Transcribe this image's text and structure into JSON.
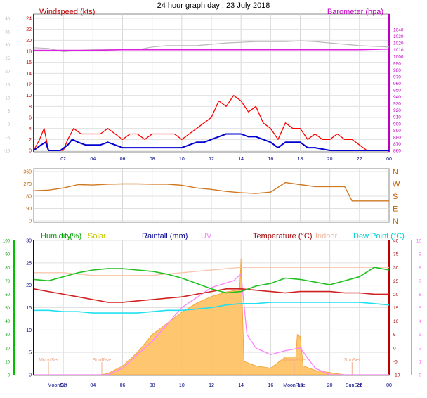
{
  "title": "24 hour graph day : 23 July 2018",
  "wind": {
    "left_label": "Windspeed (kts)",
    "right_label": "Barometer (hpa)",
    "left_ticks": [
      "24",
      "22",
      "20",
      "18",
      "16",
      "14",
      "12",
      "10",
      "8",
      "6",
      "4",
      "2",
      "0"
    ],
    "outer_left_ticks": [
      "40",
      "35",
      "30",
      "25",
      "20",
      "15",
      "10",
      "5",
      "0",
      "-5",
      "-10"
    ],
    "right_ticks": [
      "1040",
      "1030",
      "1020",
      "1010",
      "1000",
      "990",
      "980",
      "970",
      "960",
      "950",
      "940",
      "930",
      "920",
      "910",
      "900",
      "890",
      "880",
      "870",
      "860"
    ],
    "x_ticks": [
      "02",
      "04",
      "06",
      "08",
      "10",
      "12",
      "14",
      "16",
      "18",
      "20",
      "22",
      "00"
    ],
    "gust": [
      [
        0,
        0
      ],
      [
        0.4,
        2
      ],
      [
        0.7,
        4
      ],
      [
        1,
        0
      ],
      [
        1.5,
        0
      ],
      [
        2,
        0
      ],
      [
        2.3,
        2
      ],
      [
        2.7,
        4
      ],
      [
        3.2,
        3
      ],
      [
        3.5,
        3
      ],
      [
        4,
        3
      ],
      [
        4.5,
        3
      ],
      [
        5,
        4
      ],
      [
        5.5,
        3
      ],
      [
        6,
        2
      ],
      [
        6.5,
        3
      ],
      [
        7,
        3
      ],
      [
        7.5,
        2
      ],
      [
        8,
        3
      ],
      [
        8.5,
        3
      ],
      [
        9,
        3
      ],
      [
        9.5,
        3
      ],
      [
        10,
        2
      ],
      [
        10.5,
        3
      ],
      [
        11,
        4
      ],
      [
        11.5,
        5
      ],
      [
        12,
        6
      ],
      [
        12.5,
        9
      ],
      [
        13,
        8
      ],
      [
        13.5,
        10
      ],
      [
        14,
        9
      ],
      [
        14.5,
        7
      ],
      [
        15,
        8
      ],
      [
        15.5,
        5
      ],
      [
        16,
        4
      ],
      [
        16.5,
        2
      ],
      [
        17,
        5
      ],
      [
        17.5,
        4
      ],
      [
        18,
        4
      ],
      [
        18.5,
        2
      ],
      [
        19,
        3
      ],
      [
        19.5,
        2
      ],
      [
        20,
        2
      ],
      [
        20.5,
        3
      ],
      [
        21,
        2
      ],
      [
        21.5,
        2
      ],
      [
        22,
        1
      ],
      [
        22.5,
        0
      ],
      [
        23,
        0
      ],
      [
        24,
        0
      ]
    ],
    "avg": [
      [
        0,
        0
      ],
      [
        0.5,
        1
      ],
      [
        0.8,
        1.5
      ],
      [
        1,
        0
      ],
      [
        1.8,
        0
      ],
      [
        2.3,
        1
      ],
      [
        2.6,
        2
      ],
      [
        3,
        1.5
      ],
      [
        3.5,
        1
      ],
      [
        4,
        1
      ],
      [
        4.5,
        1
      ],
      [
        5,
        1.5
      ],
      [
        5.5,
        1
      ],
      [
        6,
        0.5
      ],
      [
        7,
        0.5
      ],
      [
        7.5,
        0.5
      ],
      [
        8,
        0.5
      ],
      [
        9,
        0.5
      ],
      [
        10,
        0.5
      ],
      [
        10.5,
        1
      ],
      [
        11,
        1.5
      ],
      [
        11.5,
        1.5
      ],
      [
        12,
        2
      ],
      [
        12.5,
        2.5
      ],
      [
        13,
        3
      ],
      [
        13.5,
        3
      ],
      [
        14,
        3
      ],
      [
        14.5,
        2.5
      ],
      [
        15,
        2.5
      ],
      [
        15.5,
        2
      ],
      [
        16,
        1.5
      ],
      [
        16.5,
        0.5
      ],
      [
        17,
        1.5
      ],
      [
        17.5,
        1.5
      ],
      [
        18,
        1.5
      ],
      [
        18.5,
        0.5
      ],
      [
        19,
        0.5
      ],
      [
        20,
        0
      ],
      [
        20.5,
        0
      ],
      [
        21,
        0
      ],
      [
        22,
        0
      ],
      [
        24,
        0
      ]
    ],
    "pressure": [
      [
        0,
        1009
      ],
      [
        2,
        1009
      ],
      [
        4,
        1009
      ],
      [
        6,
        1010
      ],
      [
        8,
        1010
      ],
      [
        10,
        1010
      ],
      [
        12,
        1010
      ],
      [
        14,
        1010
      ],
      [
        16,
        1010
      ],
      [
        18,
        1010
      ],
      [
        20,
        1010
      ],
      [
        22,
        1010
      ],
      [
        24,
        1011
      ]
    ],
    "gray": [
      [
        0,
        1013
      ],
      [
        1,
        1012
      ],
      [
        2,
        1007
      ],
      [
        3,
        1009
      ],
      [
        4,
        1010
      ],
      [
        5,
        1010
      ],
      [
        6,
        1011
      ],
      [
        7,
        1010
      ],
      [
        8,
        1014
      ],
      [
        9,
        1016
      ],
      [
        10,
        1016
      ],
      [
        11,
        1016
      ],
      [
        12,
        1018
      ],
      [
        13,
        1020
      ],
      [
        14,
        1021
      ],
      [
        15,
        1022
      ],
      [
        16,
        1022
      ],
      [
        17,
        1022
      ],
      [
        18,
        1023
      ],
      [
        19,
        1022
      ],
      [
        20,
        1020
      ],
      [
        21,
        1018
      ],
      [
        22,
        1016
      ],
      [
        23,
        1015
      ],
      [
        24,
        1014
      ]
    ]
  },
  "direction": {
    "left_ticks": [
      "360",
      "270",
      "180",
      "90",
      "0"
    ],
    "right_ticks": [
      "N",
      "W",
      "S",
      "E",
      "N"
    ],
    "series": [
      [
        0,
        220
      ],
      [
        1,
        225
      ],
      [
        2,
        240
      ],
      [
        3,
        265
      ],
      [
        4,
        262
      ],
      [
        5,
        268
      ],
      [
        6,
        270
      ],
      [
        7,
        270
      ],
      [
        8,
        268
      ],
      [
        9,
        268
      ],
      [
        10,
        260
      ],
      [
        11,
        240
      ],
      [
        12,
        230
      ],
      [
        13,
        215
      ],
      [
        14,
        205
      ],
      [
        15,
        200
      ],
      [
        16,
        210
      ],
      [
        17,
        280
      ],
      [
        18,
        265
      ],
      [
        19,
        250
      ],
      [
        20,
        250
      ],
      [
        21,
        250
      ],
      [
        21.5,
        145
      ],
      [
        22,
        145
      ],
      [
        23,
        145
      ],
      [
        24,
        145
      ]
    ]
  },
  "climate": {
    "labels": {
      "humidity": "Humidity",
      "humidity_unit": "(%)",
      "solar": "Solar",
      "rainfall": "Rainfall (mm)",
      "uv": "UV",
      "temperature": "Temperature (°C)",
      "indoor": "Indoor",
      "dewpoint": "Dew Point (°C)"
    },
    "humidity_ticks": [
      "100",
      "90",
      "80",
      "70",
      "60",
      "50",
      "40",
      "30",
      "20",
      "10",
      "0"
    ],
    "rain_ticks": [
      "30",
      "25",
      "20",
      "15",
      "10",
      "5",
      "0"
    ],
    "temp_ticks": [
      "40",
      "35",
      "30",
      "25",
      "20",
      "15",
      "10",
      "5",
      "0",
      "-5",
      "-10"
    ],
    "uv_ticks": [
      "10",
      "9",
      "8",
      "7",
      "6",
      "5",
      "4",
      "3",
      "2",
      "1",
      "0"
    ],
    "x_ticks": [
      "02",
      "04",
      "06",
      "08",
      "10",
      "12",
      "14",
      "16",
      "18",
      "20",
      "22",
      "00"
    ],
    "events": [
      {
        "label": "SunRise",
        "hour": 4.6
      },
      {
        "label": "SunSet",
        "hour": 21.5
      },
      {
        "label": "MoonSet",
        "hour": 1.0
      },
      {
        "label": "MoonRise",
        "hour": 17.6
      }
    ],
    "bottom_labels": [
      "MoonSet",
      "MoonRise",
      "SunSet"
    ],
    "humidity": [
      [
        0,
        71
      ],
      [
        1,
        70
      ],
      [
        2,
        73
      ],
      [
        3,
        76
      ],
      [
        4,
        78
      ],
      [
        5,
        79
      ],
      [
        6,
        79
      ],
      [
        7,
        78
      ],
      [
        8,
        77
      ],
      [
        9,
        75
      ],
      [
        10,
        72
      ],
      [
        11,
        68
      ],
      [
        12,
        64
      ],
      [
        13,
        61
      ],
      [
        14,
        62
      ],
      [
        15,
        66
      ],
      [
        16,
        68
      ],
      [
        17,
        72
      ],
      [
        18,
        71
      ],
      [
        19,
        69
      ],
      [
        20,
        67
      ],
      [
        21,
        70
      ],
      [
        22,
        73
      ],
      [
        23,
        80
      ],
      [
        24,
        78
      ]
    ],
    "temperature": [
      [
        0,
        22
      ],
      [
        1,
        21
      ],
      [
        2,
        20
      ],
      [
        3,
        19
      ],
      [
        4,
        18
      ],
      [
        5,
        17
      ],
      [
        6,
        17
      ],
      [
        7,
        17.5
      ],
      [
        8,
        18
      ],
      [
        9,
        18.5
      ],
      [
        10,
        19
      ],
      [
        11,
        20
      ],
      [
        12,
        21
      ],
      [
        13,
        22
      ],
      [
        14,
        22
      ],
      [
        15,
        21.5
      ],
      [
        16,
        21
      ],
      [
        17,
        20.5
      ],
      [
        18,
        21
      ],
      [
        19,
        21
      ],
      [
        20,
        21
      ],
      [
        21,
        20.5
      ],
      [
        22,
        20.5
      ],
      [
        23,
        20
      ],
      [
        24,
        20
      ]
    ],
    "dewpoint": [
      [
        0,
        14
      ],
      [
        1,
        14
      ],
      [
        2,
        13.5
      ],
      [
        3,
        13.5
      ],
      [
        4,
        13
      ],
      [
        5,
        13
      ],
      [
        6,
        13
      ],
      [
        7,
        13
      ],
      [
        8,
        13.5
      ],
      [
        9,
        14
      ],
      [
        10,
        14
      ],
      [
        11,
        14.5
      ],
      [
        12,
        15
      ],
      [
        13,
        16
      ],
      [
        14,
        16.5
      ],
      [
        15,
        16.5
      ],
      [
        16,
        17
      ],
      [
        17,
        17
      ],
      [
        18,
        17
      ],
      [
        19,
        17
      ],
      [
        20,
        17
      ],
      [
        21,
        17
      ],
      [
        22,
        17
      ],
      [
        23,
        16.5
      ],
      [
        24,
        16
      ]
    ],
    "indoor": [
      [
        0,
        28
      ],
      [
        2,
        28
      ],
      [
        4,
        27
      ],
      [
        6,
        27
      ],
      [
        8,
        27
      ],
      [
        10,
        28
      ],
      [
        12,
        29
      ],
      [
        14,
        30
      ],
      [
        16,
        30
      ],
      [
        18,
        30
      ],
      [
        20,
        30
      ],
      [
        22,
        30
      ],
      [
        24,
        30
      ]
    ],
    "solar": [
      [
        0,
        0
      ],
      [
        4.5,
        0
      ],
      [
        5,
        0.3
      ],
      [
        6,
        2
      ],
      [
        7,
        5
      ],
      [
        8,
        9
      ],
      [
        9,
        11.5
      ],
      [
        10,
        14
      ],
      [
        11,
        16
      ],
      [
        12,
        17.5
      ],
      [
        13,
        18.5
      ],
      [
        13.9,
        19
      ],
      [
        14,
        26
      ],
      [
        14.2,
        3
      ],
      [
        15,
        2
      ],
      [
        16,
        1.5
      ],
      [
        17,
        4
      ],
      [
        17.7,
        4
      ],
      [
        17.8,
        9
      ],
      [
        18,
        8.5
      ],
      [
        18.2,
        2
      ],
      [
        19,
        1
      ],
      [
        20,
        0.5
      ],
      [
        21,
        0
      ],
      [
        24,
        0
      ]
    ],
    "uv": [
      [
        0,
        0
      ],
      [
        5,
        0
      ],
      [
        6,
        0.5
      ],
      [
        8,
        2.5
      ],
      [
        10,
        5
      ],
      [
        12,
        6.5
      ],
      [
        13.5,
        7
      ],
      [
        14,
        7.5
      ],
      [
        14.4,
        3
      ],
      [
        15,
        2
      ],
      [
        16,
        1.5
      ],
      [
        17,
        1.8
      ],
      [
        18,
        2
      ],
      [
        19,
        0.5
      ],
      [
        20,
        0
      ],
      [
        24,
        0
      ]
    ]
  }
}
